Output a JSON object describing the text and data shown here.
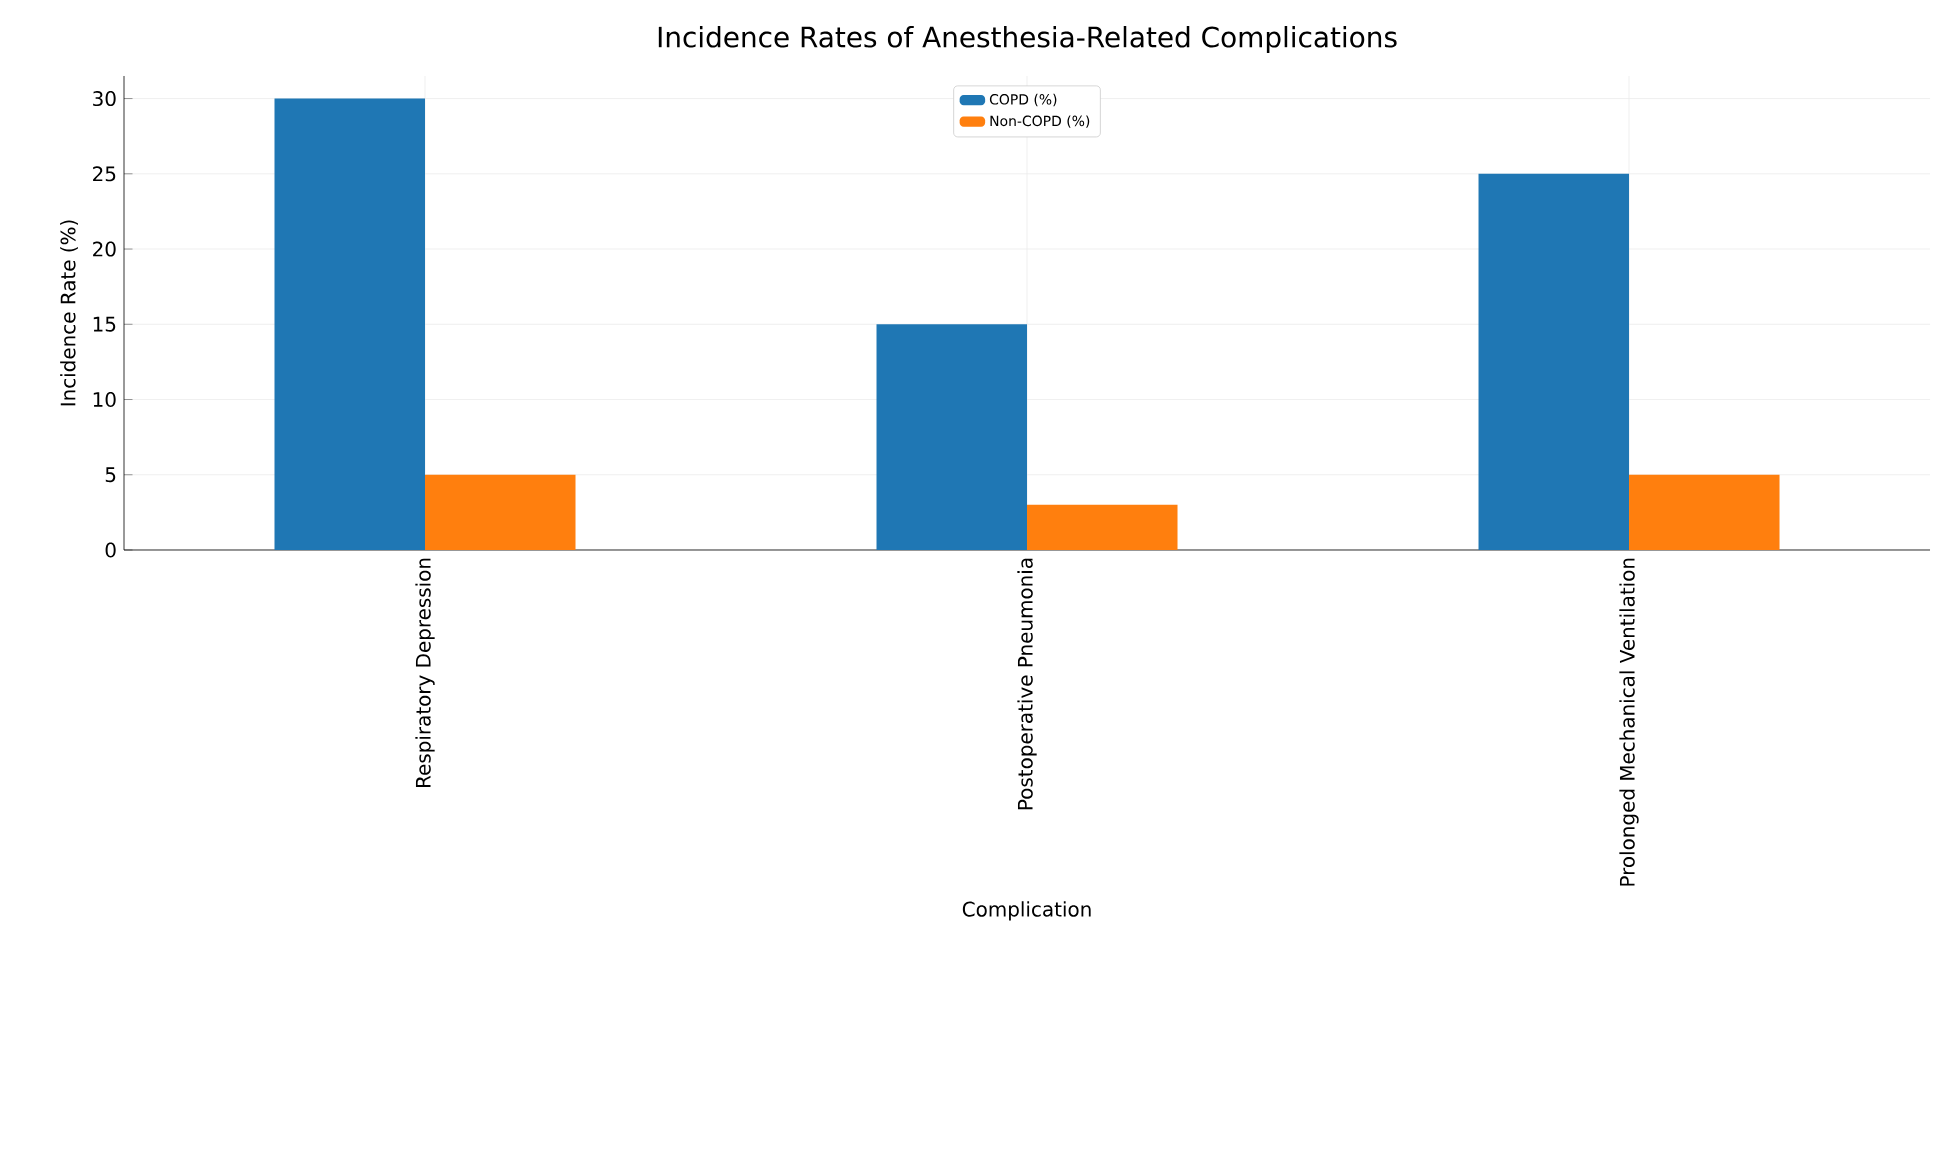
{
  "chart_data": {
    "type": "bar",
    "title": "Incidence Rates of Anesthesia-Related Complications",
    "xlabel": "Complication",
    "ylabel": "Incidence Rate (%)",
    "categories": [
      "Respiratory Depression",
      "Postoperative Pneumonia",
      "Prolonged Mechanical Ventilation"
    ],
    "series": [
      {
        "name": "COPD (%)",
        "color": "#1f77b4",
        "values": [
          30,
          15,
          25
        ]
      },
      {
        "name": "Non-COPD (%)",
        "color": "#ff7f0e",
        "values": [
          5,
          3,
          5
        ]
      }
    ],
    "ylim": [
      0,
      31.5
    ],
    "yticks": [
      0,
      5,
      10,
      15,
      20,
      25,
      30
    ],
    "grid": true,
    "legend": "top"
  }
}
